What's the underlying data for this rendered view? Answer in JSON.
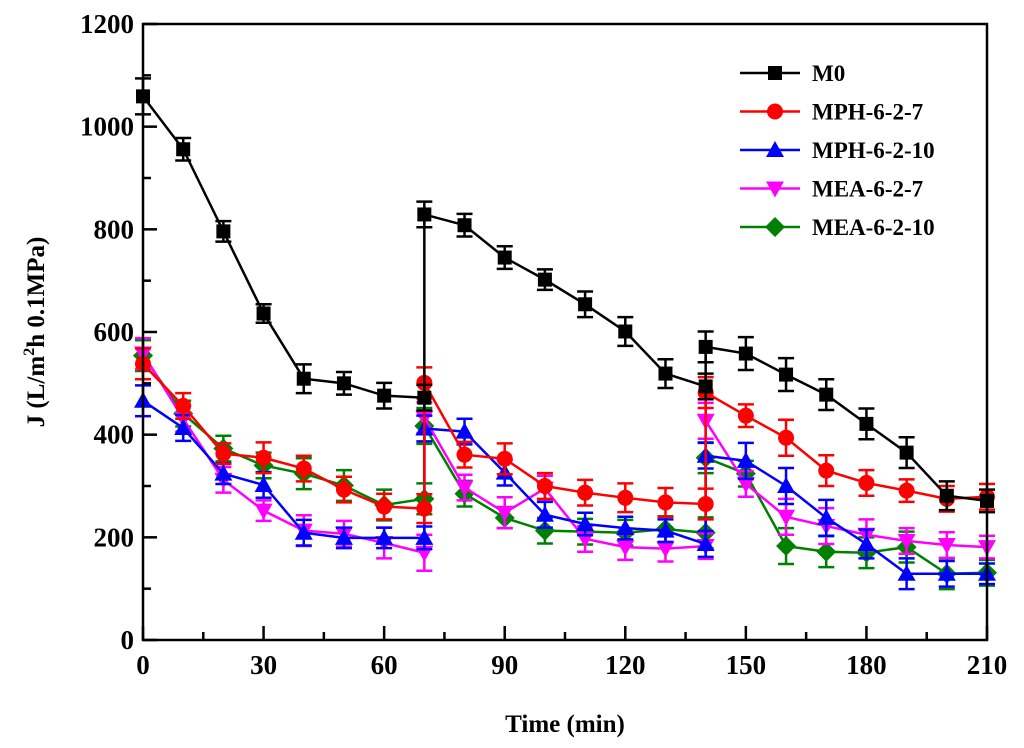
{
  "chart_data": {
    "type": "line",
    "title": "",
    "xlabel": "Time (min)",
    "ylabel_parts": {
      "prefix": "J (L/m",
      "sup": "2",
      "suffix": "h 0.1MPa)"
    },
    "ylabel": "J (L/m2h 0.1MPa)",
    "xlim": [
      0,
      210
    ],
    "ylim": [
      0,
      1200
    ],
    "xticks": [
      0,
      30,
      60,
      90,
      120,
      150,
      180,
      210
    ],
    "xtick_labels": [
      "0",
      "30",
      "60",
      "90",
      "120",
      "150",
      "180",
      "210"
    ],
    "xminor_step": 15,
    "yticks": [
      0,
      200,
      400,
      600,
      800,
      1000,
      1200
    ],
    "ytick_labels": [
      "0",
      "200",
      "400",
      "600",
      "800",
      "1000",
      "1200"
    ],
    "yminor_step": 100,
    "grid": false,
    "legend_position": "top-right",
    "x": [
      0,
      10,
      20,
      30,
      40,
      50,
      60,
      70,
      70,
      80,
      90,
      100,
      110,
      120,
      130,
      140,
      140,
      150,
      160,
      170,
      180,
      190,
      200,
      210
    ],
    "series": [
      {
        "name": "M0",
        "color": "#000000",
        "marker": "square",
        "values": [
          1059,
          956,
          796,
          636,
          509,
          500,
          476,
          472,
          829,
          808,
          745,
          702,
          654,
          601,
          519,
          494,
          571,
          558,
          517,
          478,
          421,
          365,
          281,
          271
        ],
        "errors": [
          35,
          22,
          20,
          18,
          28,
          22,
          25,
          25,
          25,
          22,
          22,
          20,
          25,
          28,
          28,
          25,
          30,
          32,
          32,
          30,
          30,
          30,
          28,
          22
        ]
      },
      {
        "name": "MPH-6-2-7",
        "color": "#ff0000",
        "marker": "circle",
        "values": [
          538,
          456,
          363,
          355,
          334,
          293,
          260,
          256,
          501,
          361,
          353,
          300,
          287,
          277,
          268,
          265,
          482,
          437,
          394,
          330,
          306,
          291,
          275,
          279
        ],
        "errors": [
          30,
          25,
          20,
          30,
          25,
          25,
          25,
          28,
          30,
          25,
          30,
          25,
          25,
          28,
          28,
          30,
          30,
          22,
          35,
          30,
          25,
          22,
          25,
          25
        ]
      },
      {
        "name": "MPH-6-2-10",
        "color": "#0000ff",
        "marker": "triangle-up",
        "values": [
          466,
          413,
          324,
          302,
          209,
          199,
          199,
          199,
          412,
          406,
          326,
          244,
          226,
          218,
          213,
          187,
          359,
          349,
          300,
          238,
          187,
          129,
          129,
          129
        ],
        "errors": [
          30,
          25,
          20,
          25,
          25,
          20,
          20,
          22,
          25,
          25,
          25,
          25,
          22,
          22,
          22,
          25,
          25,
          35,
          35,
          35,
          28,
          30,
          25,
          20
        ]
      },
      {
        "name": "MEA-6-2-7",
        "color": "#ff00ff",
        "marker": "triangle-down",
        "values": [
          558,
          431,
          312,
          252,
          213,
          207,
          189,
          170,
          433,
          297,
          248,
          295,
          197,
          181,
          178,
          183,
          427,
          304,
          240,
          222,
          205,
          193,
          185,
          181
        ],
        "errors": [
          30,
          25,
          25,
          20,
          30,
          25,
          30,
          35,
          30,
          25,
          30,
          25,
          25,
          25,
          25,
          25,
          35,
          25,
          35,
          35,
          30,
          25,
          25,
          22
        ]
      },
      {
        "name": "MEA-6-2-10",
        "color": "#008000",
        "marker": "diamond",
        "values": [
          554,
          441,
          373,
          340,
          324,
          301,
          263,
          275,
          417,
          285,
          238,
          213,
          211,
          209,
          216,
          209,
          355,
          324,
          183,
          172,
          170,
          181,
          129,
          131
        ],
        "errors": [
          30,
          25,
          25,
          25,
          30,
          30,
          30,
          30,
          35,
          25,
          20,
          25,
          25,
          25,
          25,
          30,
          30,
          25,
          35,
          30,
          30,
          30,
          30,
          25
        ]
      }
    ]
  }
}
